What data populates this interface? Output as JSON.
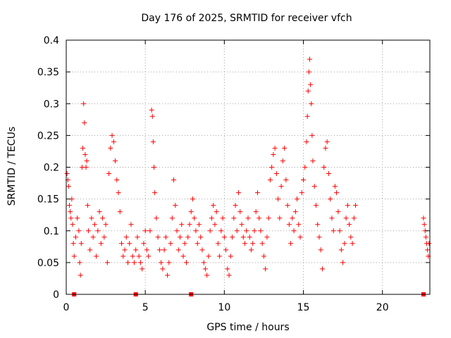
{
  "chart_data": {
    "type": "scatter",
    "title": "Day 176 of 2025, SRMTID for receiver vfch",
    "xlabel": "GPS time / hours",
    "ylabel": "SRMTID / TECUs",
    "xlim": [
      0,
      23
    ],
    "ylim": [
      0,
      0.4
    ],
    "xticks": [
      0,
      5,
      10,
      15,
      20
    ],
    "yticks": [
      0,
      0.05,
      0.1,
      0.15,
      0.2,
      0.25,
      0.3,
      0.35,
      0.4
    ],
    "ytick_labels": [
      "0",
      "0.05",
      "0.1",
      "0.15",
      "0.2",
      "0.25",
      "0.3",
      "0.35",
      "0.4"
    ],
    "grid": true,
    "marker": "+",
    "color": "#ff0000",
    "series": [
      {
        "name": "SRMTID",
        "points": [
          [
            0.05,
            0.19
          ],
          [
            0.1,
            0.18
          ],
          [
            0.15,
            0.17
          ],
          [
            0.2,
            0.14
          ],
          [
            0.25,
            0.13
          ],
          [
            0.3,
            0.12
          ],
          [
            0.35,
            0.15
          ],
          [
            0.4,
            0.11
          ],
          [
            0.45,
            0.08
          ],
          [
            0.5,
            0.06
          ],
          [
            0.6,
            0.09
          ],
          [
            0.7,
            0.12
          ],
          [
            0.8,
            0.1
          ],
          [
            0.85,
            0.05
          ],
          [
            0.9,
            0.03
          ],
          [
            0.95,
            0.08
          ],
          [
            1.0,
            0.2
          ],
          [
            1.05,
            0.23
          ],
          [
            1.1,
            0.3
          ],
          [
            1.15,
            0.27
          ],
          [
            1.2,
            0.22
          ],
          [
            1.25,
            0.2
          ],
          [
            1.3,
            0.21
          ],
          [
            1.35,
            0.14
          ],
          [
            1.4,
            0.1
          ],
          [
            1.5,
            0.07
          ],
          [
            1.6,
            0.12
          ],
          [
            1.7,
            0.09
          ],
          [
            1.8,
            0.11
          ],
          [
            1.9,
            0.06
          ],
          [
            2.0,
            0.1
          ],
          [
            2.1,
            0.13
          ],
          [
            2.2,
            0.08
          ],
          [
            2.3,
            0.12
          ],
          [
            2.4,
            0.09
          ],
          [
            2.5,
            0.11
          ],
          [
            2.6,
            0.05
          ],
          [
            2.7,
            0.19
          ],
          [
            2.8,
            0.23
          ],
          [
            2.9,
            0.25
          ],
          [
            3.0,
            0.24
          ],
          [
            3.1,
            0.21
          ],
          [
            3.2,
            0.18
          ],
          [
            3.3,
            0.16
          ],
          [
            3.4,
            0.13
          ],
          [
            3.5,
            0.08
          ],
          [
            3.6,
            0.06
          ],
          [
            3.7,
            0.07
          ],
          [
            3.8,
            0.09
          ],
          [
            3.9,
            0.05
          ],
          [
            4.0,
            0.08
          ],
          [
            4.1,
            0.11
          ],
          [
            4.2,
            0.06
          ],
          [
            4.3,
            0.05
          ],
          [
            4.4,
            0.07
          ],
          [
            4.5,
            0.09
          ],
          [
            4.6,
            0.06
          ],
          [
            4.7,
            0.05
          ],
          [
            4.8,
            0.04
          ],
          [
            4.9,
            0.08
          ],
          [
            5.0,
            0.1
          ],
          [
            5.1,
            0.07
          ],
          [
            5.2,
            0.06
          ],
          [
            5.3,
            0.1
          ],
          [
            5.4,
            0.29
          ],
          [
            5.45,
            0.28
          ],
          [
            5.5,
            0.24
          ],
          [
            5.55,
            0.2
          ],
          [
            5.6,
            0.16
          ],
          [
            5.7,
            0.12
          ],
          [
            5.8,
            0.09
          ],
          [
            5.9,
            0.07
          ],
          [
            6.0,
            0.05
          ],
          [
            6.1,
            0.04
          ],
          [
            6.2,
            0.07
          ],
          [
            6.3,
            0.09
          ],
          [
            6.4,
            0.03
          ],
          [
            6.5,
            0.05
          ],
          [
            6.6,
            0.08
          ],
          [
            6.7,
            0.12
          ],
          [
            6.8,
            0.18
          ],
          [
            6.9,
            0.14
          ],
          [
            7.0,
            0.1
          ],
          [
            7.1,
            0.07
          ],
          [
            7.2,
            0.09
          ],
          [
            7.3,
            0.11
          ],
          [
            7.4,
            0.06
          ],
          [
            7.5,
            0.08
          ],
          [
            7.6,
            0.05
          ],
          [
            7.7,
            0.09
          ],
          [
            7.8,
            0.11
          ],
          [
            7.9,
            0.13
          ],
          [
            8.0,
            0.15
          ],
          [
            8.1,
            0.12
          ],
          [
            8.2,
            0.1
          ],
          [
            8.3,
            0.08
          ],
          [
            8.4,
            0.11
          ],
          [
            8.5,
            0.09
          ],
          [
            8.6,
            0.07
          ],
          [
            8.7,
            0.05
          ],
          [
            8.8,
            0.04
          ],
          [
            8.9,
            0.03
          ],
          [
            9.0,
            0.06
          ],
          [
            9.1,
            0.1
          ],
          [
            9.2,
            0.12
          ],
          [
            9.3,
            0.14
          ],
          [
            9.4,
            0.11
          ],
          [
            9.5,
            0.13
          ],
          [
            9.6,
            0.08
          ],
          [
            9.7,
            0.06
          ],
          [
            9.8,
            0.1
          ],
          [
            9.9,
            0.12
          ],
          [
            10.0,
            0.09
          ],
          [
            10.1,
            0.07
          ],
          [
            10.2,
            0.04
          ],
          [
            10.3,
            0.03
          ],
          [
            10.4,
            0.06
          ],
          [
            10.5,
            0.09
          ],
          [
            10.6,
            0.12
          ],
          [
            10.7,
            0.14
          ],
          [
            10.8,
            0.1
          ],
          [
            10.9,
            0.16
          ],
          [
            11.0,
            0.13
          ],
          [
            11.1,
            0.11
          ],
          [
            11.2,
            0.09
          ],
          [
            11.3,
            0.08
          ],
          [
            11.4,
            0.1
          ],
          [
            11.5,
            0.12
          ],
          [
            11.6,
            0.09
          ],
          [
            11.7,
            0.07
          ],
          [
            11.8,
            0.08
          ],
          [
            11.9,
            0.1
          ],
          [
            12.0,
            0.13
          ],
          [
            12.1,
            0.16
          ],
          [
            12.2,
            0.12
          ],
          [
            12.3,
            0.1
          ],
          [
            12.4,
            0.08
          ],
          [
            12.5,
            0.06
          ],
          [
            12.6,
            0.04
          ],
          [
            12.7,
            0.09
          ],
          [
            12.8,
            0.12
          ],
          [
            12.9,
            0.18
          ],
          [
            13.0,
            0.2
          ],
          [
            13.1,
            0.22
          ],
          [
            13.2,
            0.23
          ],
          [
            13.3,
            0.19
          ],
          [
            13.4,
            0.15
          ],
          [
            13.5,
            0.12
          ],
          [
            13.6,
            0.17
          ],
          [
            13.7,
            0.21
          ],
          [
            13.8,
            0.23
          ],
          [
            13.9,
            0.18
          ],
          [
            14.0,
            0.14
          ],
          [
            14.1,
            0.11
          ],
          [
            14.2,
            0.08
          ],
          [
            14.3,
            0.12
          ],
          [
            14.4,
            0.1
          ],
          [
            14.5,
            0.13
          ],
          [
            14.6,
            0.15
          ],
          [
            14.7,
            0.11
          ],
          [
            14.8,
            0.09
          ],
          [
            14.9,
            0.16
          ],
          [
            15.0,
            0.18
          ],
          [
            15.1,
            0.2
          ],
          [
            15.2,
            0.24
          ],
          [
            15.25,
            0.28
          ],
          [
            15.3,
            0.32
          ],
          [
            15.35,
            0.35
          ],
          [
            15.4,
            0.37
          ],
          [
            15.45,
            0.33
          ],
          [
            15.5,
            0.3
          ],
          [
            15.55,
            0.25
          ],
          [
            15.6,
            0.21
          ],
          [
            15.7,
            0.17
          ],
          [
            15.8,
            0.14
          ],
          [
            15.9,
            0.11
          ],
          [
            16.0,
            0.09
          ],
          [
            16.1,
            0.07
          ],
          [
            16.2,
            0.04
          ],
          [
            16.3,
            0.2
          ],
          [
            16.4,
            0.23
          ],
          [
            16.5,
            0.24
          ],
          [
            16.6,
            0.19
          ],
          [
            16.7,
            0.15
          ],
          [
            16.8,
            0.12
          ],
          [
            16.9,
            0.1
          ],
          [
            17.0,
            0.17
          ],
          [
            17.1,
            0.16
          ],
          [
            17.2,
            0.13
          ],
          [
            17.3,
            0.1
          ],
          [
            17.4,
            0.07
          ],
          [
            17.5,
            0.05
          ],
          [
            17.6,
            0.08
          ],
          [
            17.7,
            0.12
          ],
          [
            17.8,
            0.14
          ],
          [
            17.9,
            0.11
          ],
          [
            18.0,
            0.09
          ],
          [
            18.1,
            0.08
          ],
          [
            18.2,
            0.12
          ],
          [
            18.3,
            0.14
          ],
          [
            22.6,
            0.12
          ],
          [
            22.65,
            0.11
          ],
          [
            22.7,
            0.1
          ],
          [
            22.75,
            0.09
          ],
          [
            22.8,
            0.08
          ],
          [
            22.85,
            0.07
          ],
          [
            22.9,
            0.06
          ],
          [
            22.95,
            0.08
          ]
        ]
      }
    ],
    "baseline_markers": [
      0.5,
      4.4,
      7.9,
      22.6
    ]
  }
}
